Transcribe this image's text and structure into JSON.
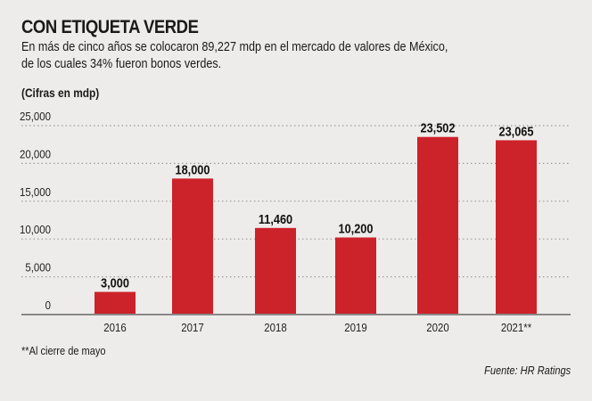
{
  "chart_data": {
    "type": "bar",
    "title": "CON ETIQUETA VERDE",
    "subtitle": "En más de cinco años se colocaron 89,227 mdp en el mercado de valores de México, de los cuales 34% fueron bonos verdes.",
    "subtitle_lines": [
      "En más de cinco años se colocaron 89,227 mdp en el mercado de valores de México,",
      "de los cuales 34% fueron bonos verdes."
    ],
    "unit_label": "(Cifras en mdp)",
    "categories": [
      "2016",
      "2017",
      "2018",
      "2019",
      "2020",
      "2021**"
    ],
    "values": [
      3000,
      18000,
      11460,
      10200,
      23502,
      23065
    ],
    "data_labels": [
      "3,000",
      "18,000",
      "11,460",
      "10,200",
      "23,502",
      "23,065"
    ],
    "yticks": [
      0,
      5000,
      10000,
      15000,
      20000,
      25000
    ],
    "ytick_labels": [
      "0",
      "5,000",
      "10,000",
      "15,000",
      "20,000",
      "25,000"
    ],
    "ylim": [
      0,
      25000
    ],
    "grid": true,
    "bar_color": "#cc2229",
    "note": "**Al cierre de mayo",
    "source": "Fuente: HR Ratings"
  }
}
